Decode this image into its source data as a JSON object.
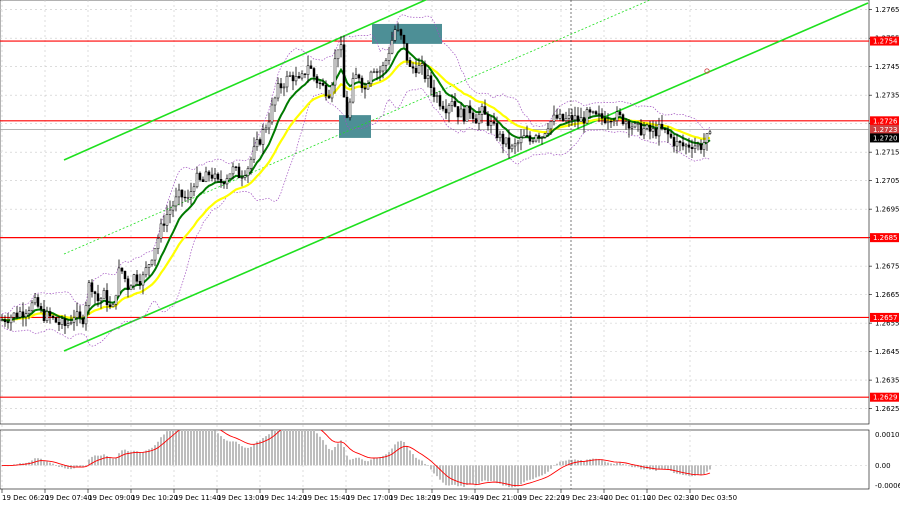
{
  "chart_data": [
    {
      "type": "candlestick",
      "title": "",
      "x_tick_labels": [
        "19 Dec 06:20",
        "19 Dec 07:40",
        "19 Dec 09:00",
        "19 Dec 10:20",
        "19 Dec 11:40",
        "19 Dec 13:00",
        "19 Dec 14:20",
        "19 Dec 15:40",
        "19 Dec 17:00",
        "19 Dec 18:20",
        "19 Dec 19:40",
        "19 Dec 21:00",
        "19 Dec 22:20",
        "19 Dec 23:40",
        "20 Dec 01:10",
        "20 Dec 02:30",
        "20 Dec 03:50"
      ],
      "y_tick_labels": [
        "1.2765",
        "1.2755",
        "1.2745",
        "1.2735",
        "1.2725",
        "1.2715",
        "1.2705",
        "1.2695",
        "1.2685",
        "1.2675",
        "1.2665",
        "1.2655",
        "1.2645",
        "1.2635",
        "1.2625"
      ],
      "ylim": [
        1.2621,
        1.2767
      ],
      "current_price": "1.2720",
      "current_price_extra": "1.2723",
      "levels": [
        {
          "label": "1.2754",
          "value": 1.2754,
          "color": "#ff0000"
        },
        {
          "label": "1.2726",
          "value": 1.2726,
          "color": "#ff0000"
        },
        {
          "label": "1.2685",
          "value": 1.2685,
          "color": "#ff0000"
        },
        {
          "label": "1.2657",
          "value": 1.2657,
          "color": "#ff0000"
        },
        {
          "label": "1.2629",
          "value": 1.2629,
          "color": "#ff0000"
        }
      ],
      "price_path": [
        [
          0,
          1.2656
        ],
        [
          8,
          1.2657
        ],
        [
          15,
          1.2658
        ],
        [
          22,
          1.2659
        ],
        [
          30,
          1.2661
        ],
        [
          36,
          1.2662
        ],
        [
          42,
          1.2658
        ],
        [
          50,
          1.2657
        ],
        [
          58,
          1.2655
        ],
        [
          66,
          1.2654
        ],
        [
          74,
          1.2658
        ],
        [
          82,
          1.2655
        ],
        [
          90,
          1.267
        ],
        [
          98,
          1.2663
        ],
        [
          105,
          1.2665
        ],
        [
          112,
          1.2658
        ],
        [
          120,
          1.2675
        ],
        [
          128,
          1.2668
        ],
        [
          135,
          1.2672
        ],
        [
          142,
          1.267
        ],
        [
          150,
          1.2677
        ],
        [
          158,
          1.2685
        ],
        [
          165,
          1.2692
        ],
        [
          172,
          1.2696
        ],
        [
          180,
          1.27
        ],
        [
          188,
          1.2698
        ],
        [
          195,
          1.2706
        ],
        [
          202,
          1.2704
        ],
        [
          210,
          1.2708
        ],
        [
          218,
          1.2704
        ],
        [
          225,
          1.2706
        ],
        [
          232,
          1.2709
        ],
        [
          240,
          1.2707
        ],
        [
          248,
          1.271
        ],
        [
          255,
          1.2716
        ],
        [
          262,
          1.2721
        ],
        [
          270,
          1.2728
        ],
        [
          278,
          1.2737
        ],
        [
          285,
          1.274
        ],
        [
          292,
          1.2742
        ],
        [
          300,
          1.2739
        ],
        [
          308,
          1.2746
        ],
        [
          315,
          1.2741
        ],
        [
          322,
          1.2738
        ],
        [
          330,
          1.2736
        ],
        [
          335,
          1.2747
        ],
        [
          340,
          1.2756
        ],
        [
          344,
          1.2734
        ],
        [
          348,
          1.2726
        ],
        [
          352,
          1.2738
        ],
        [
          358,
          1.2743
        ],
        [
          365,
          1.2737
        ],
        [
          372,
          1.2746
        ],
        [
          378,
          1.2743
        ],
        [
          384,
          1.2745
        ],
        [
          390,
          1.2752
        ],
        [
          395,
          1.2758
        ],
        [
          400,
          1.2756
        ],
        [
          405,
          1.2751
        ],
        [
          410,
          1.2744
        ],
        [
          416,
          1.2745
        ],
        [
          422,
          1.2744
        ],
        [
          428,
          1.274
        ],
        [
          434,
          1.2736
        ],
        [
          440,
          1.2733
        ],
        [
          446,
          1.2731
        ],
        [
          452,
          1.2734
        ],
        [
          458,
          1.2729
        ],
        [
          464,
          1.2728
        ],
        [
          470,
          1.273
        ],
        [
          476,
          1.2727
        ],
        [
          482,
          1.2729
        ],
        [
          488,
          1.2726
        ],
        [
          494,
          1.2723
        ],
        [
          500,
          1.272
        ],
        [
          506,
          1.2718
        ],
        [
          512,
          1.2716
        ],
        [
          518,
          1.2718
        ],
        [
          524,
          1.272
        ],
        [
          530,
          1.2719
        ],
        [
          536,
          1.2722
        ],
        [
          542,
          1.2721
        ],
        [
          548,
          1.2725
        ],
        [
          556,
          1.2727
        ],
        [
          564,
          1.2726
        ],
        [
          572,
          1.2727
        ],
        [
          580,
          1.2726
        ],
        [
          588,
          1.2728
        ],
        [
          596,
          1.2727
        ],
        [
          604,
          1.2727
        ],
        [
          612,
          1.2728
        ],
        [
          620,
          1.2727
        ],
        [
          628,
          1.2726
        ],
        [
          636,
          1.2723
        ],
        [
          644,
          1.2723
        ],
        [
          652,
          1.2722
        ],
        [
          660,
          1.2723
        ],
        [
          668,
          1.2721
        ],
        [
          676,
          1.2718
        ],
        [
          684,
          1.2717
        ],
        [
          692,
          1.2718
        ],
        [
          700,
          1.2717
        ],
        [
          708,
          1.272
        ]
      ],
      "macd_histogram_scale": [
        "0.00103",
        "0.00",
        "-0.00065"
      ],
      "macd_ylim": [
        -0.0007,
        0.00108
      ]
    }
  ]
}
